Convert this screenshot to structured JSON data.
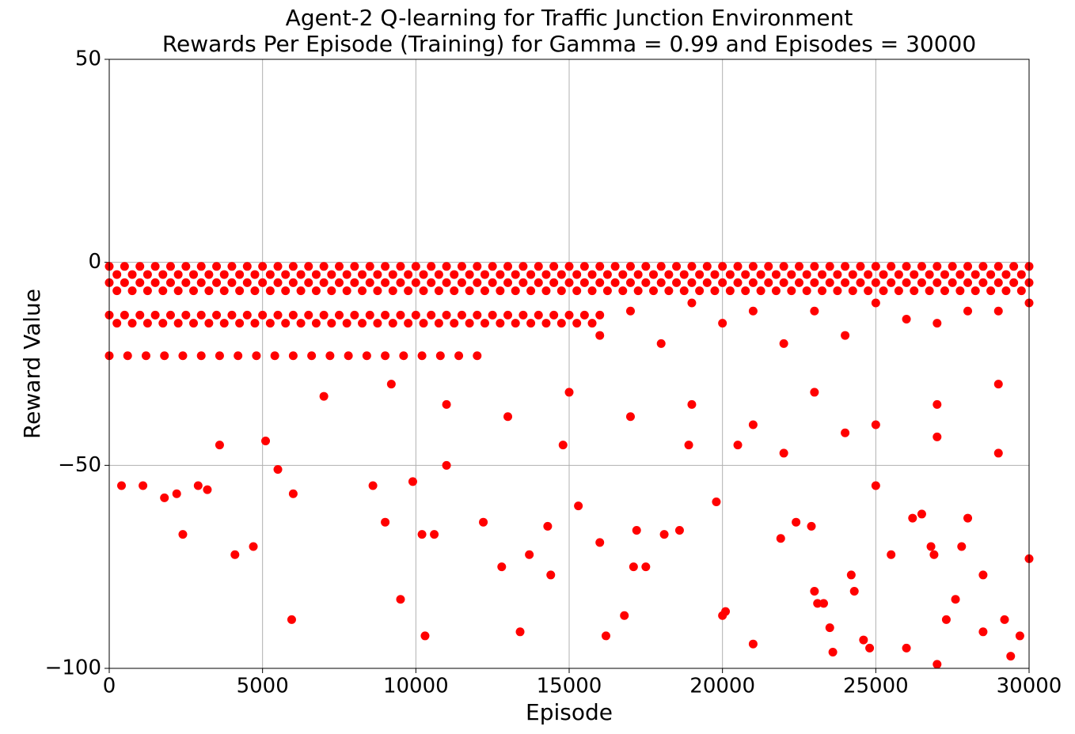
{
  "chart_data": {
    "type": "scatter",
    "title": "Agent-2 Q-learning for Traffic Junction Environment",
    "subtitle": "Rewards Per Episode (Training) for Gamma = 0.99 and Episodes = 30000",
    "x_label": "Episode",
    "y_label": "Reward Value",
    "color": "#ff0000",
    "grid": true,
    "xlim": [
      0,
      30000
    ],
    "xticks": [
      0,
      5000,
      10000,
      15000,
      20000,
      25000,
      30000
    ],
    "ylim": [
      -100,
      50
    ],
    "yticks": [
      {
        "value": -100,
        "label": "−100"
      },
      {
        "value": -50,
        "label": "−50"
      },
      0,
      50
    ],
    "x": [
      0,
      500,
      1000,
      1500,
      2000,
      2500,
      3000,
      3500,
      4000,
      4500,
      5000,
      5500,
      6000,
      6500,
      7000,
      7500,
      8000,
      8500,
      9000,
      9500,
      10000,
      10500,
      11000,
      11500,
      12000,
      12500,
      13000,
      13500,
      14000,
      14500,
      15000,
      15500,
      16000,
      16500,
      17000,
      17500,
      18000,
      18500,
      19000,
      19500,
      20000,
      20500,
      21000,
      21500,
      22000,
      22500,
      23000,
      23500,
      24000,
      24500,
      25000,
      25500,
      26000,
      26500,
      27000,
      27500,
      28000,
      28500,
      29000,
      29500,
      30000,
      250,
      750,
      1250,
      1750,
      2250,
      2750,
      3250,
      3750,
      4250,
      4750,
      5250,
      5750,
      6250,
      6750,
      7250,
      7750,
      8250,
      8750,
      9250,
      9750,
      10250,
      10750,
      11250,
      11750,
      12250,
      12750,
      13250,
      13750,
      14250,
      14750,
      15250,
      15750,
      16250,
      16750,
      17250,
      17750,
      18250,
      18750,
      19250,
      19750,
      20250,
      20750,
      21250,
      21750,
      22250,
      22750,
      23250,
      23750,
      24250,
      24750,
      25250,
      25750,
      26250,
      26750,
      27250,
      27750,
      28250,
      28750,
      29250,
      29750,
      0,
      500,
      1000,
      1500,
      2000,
      2500,
      3000,
      3500,
      4000,
      4500,
      5000,
      5500,
      6000,
      6500,
      7000,
      7500,
      8000,
      8500,
      9000,
      9500,
      10000,
      10500,
      11000,
      11500,
      12000,
      12500,
      13000,
      13500,
      14000,
      14500,
      15000,
      15500,
      16000,
      16500,
      17000,
      17500,
      18000,
      18500,
      19000,
      19500,
      20000,
      20500,
      21000,
      21500,
      22000,
      22500,
      23000,
      23500,
      24000,
      24500,
      25000,
      25500,
      26000,
      26500,
      27000,
      27500,
      28000,
      28500,
      29000,
      29500,
      30000,
      250,
      750,
      1250,
      1750,
      2250,
      2750,
      3250,
      3750,
      4250,
      4750,
      5250,
      5750,
      6250,
      6750,
      7250,
      7750,
      8250,
      8750,
      9250,
      9750,
      10250,
      10750,
      11250,
      11750,
      12250,
      12750,
      13250,
      13750,
      14250,
      14750,
      15250,
      15750,
      16250,
      16750,
      17250,
      17750,
      18250,
      18750,
      19250,
      19750,
      20250,
      20750,
      21250,
      21750,
      22250,
      22750,
      23250,
      23750,
      24250,
      24750,
      25250,
      25750,
      26250,
      26750,
      27250,
      27750,
      28250,
      28750,
      29250,
      29750,
      0,
      500,
      1000,
      1500,
      2000,
      2500,
      3000,
      3500,
      4000,
      4500,
      5000,
      5500,
      6000,
      6500,
      7000,
      7500,
      8000,
      8500,
      9000,
      9500,
      10000,
      10500,
      11000,
      11500,
      12000,
      12500,
      13000,
      13500,
      14000,
      14500,
      15000,
      15500,
      16000,
      250,
      750,
      1250,
      1750,
      2250,
      2750,
      3250,
      3750,
      4250,
      4750,
      5250,
      5750,
      6250,
      6750,
      7250,
      7750,
      8250,
      8750,
      9250,
      9750,
      10250,
      10750,
      11250,
      11750,
      12250,
      12750,
      13250,
      13750,
      14250,
      14750,
      15250,
      15750,
      0,
      600,
      1200,
      1800,
      2400,
      3000,
      3600,
      4200,
      4800,
      5400,
      6000,
      6600,
      7200,
      7800,
      8400,
      9000,
      9600,
      10200,
      10800,
      11400,
      12000,
      400,
      1100,
      1800,
      2200,
      2400,
      2900,
      3200,
      3600,
      4100,
      4700,
      5100,
      5500,
      6000,
      5950,
      8600,
      9000,
      9500,
      9900,
      10300,
      10200,
      10600,
      11000,
      12200,
      12800,
      13400,
      13700,
      14300,
      14400,
      15300,
      16000,
      16200,
      16800,
      17100,
      17500,
      17200,
      18100,
      18600,
      19800,
      20000,
      20100,
      21000,
      21900,
      22400,
      22900,
      23000,
      23100,
      23300,
      23600,
      23500,
      24200,
      24300,
      24600,
      24800,
      25000,
      26000,
      26200,
      26500,
      26900,
      27000,
      27300,
      27600,
      27800,
      28500,
      28500,
      29200,
      29400,
      29700,
      30000,
      28000,
      25500,
      26800,
      14800,
      18900,
      20500,
      22000,
      24000,
      27000,
      29000,
      7000,
      9200,
      11000,
      13000,
      15000,
      17000,
      19000,
      21000,
      23000,
      25000,
      27000,
      29000,
      16000,
      18000,
      20000,
      22000,
      24000,
      26000,
      28000,
      30000,
      17000,
      19000,
      21000,
      23000,
      25000,
      27000,
      29000
    ],
    "values": [
      -1,
      -1,
      -1,
      -1,
      -1,
      -1,
      -1,
      -1,
      -1,
      -1,
      -1,
      -1,
      -1,
      -1,
      -1,
      -1,
      -1,
      -1,
      -1,
      -1,
      -1,
      -1,
      -1,
      -1,
      -1,
      -1,
      -1,
      -1,
      -1,
      -1,
      -1,
      -1,
      -1,
      -1,
      -1,
      -1,
      -1,
      -1,
      -1,
      -1,
      -1,
      -1,
      -1,
      -1,
      -1,
      -1,
      -1,
      -1,
      -1,
      -1,
      -1,
      -1,
      -1,
      -1,
      -1,
      -1,
      -1,
      -1,
      -1,
      -1,
      -1,
      -3,
      -3,
      -3,
      -3,
      -3,
      -3,
      -3,
      -3,
      -3,
      -3,
      -3,
      -3,
      -3,
      -3,
      -3,
      -3,
      -3,
      -3,
      -3,
      -3,
      -3,
      -3,
      -3,
      -3,
      -3,
      -3,
      -3,
      -3,
      -3,
      -3,
      -3,
      -3,
      -3,
      -3,
      -3,
      -3,
      -3,
      -3,
      -3,
      -3,
      -3,
      -3,
      -3,
      -3,
      -3,
      -3,
      -3,
      -3,
      -3,
      -3,
      -3,
      -3,
      -3,
      -3,
      -3,
      -3,
      -3,
      -3,
      -3,
      -3,
      -5,
      -5,
      -5,
      -5,
      -5,
      -5,
      -5,
      -5,
      -5,
      -5,
      -5,
      -5,
      -5,
      -5,
      -5,
      -5,
      -5,
      -5,
      -5,
      -5,
      -5,
      -5,
      -5,
      -5,
      -5,
      -5,
      -5,
      -5,
      -5,
      -5,
      -5,
      -5,
      -5,
      -5,
      -5,
      -5,
      -5,
      -5,
      -5,
      -5,
      -5,
      -5,
      -5,
      -5,
      -5,
      -5,
      -5,
      -5,
      -5,
      -5,
      -5,
      -5,
      -5,
      -5,
      -5,
      -5,
      -5,
      -5,
      -5,
      -5,
      -5,
      -7,
      -7,
      -7,
      -7,
      -7,
      -7,
      -7,
      -7,
      -7,
      -7,
      -7,
      -7,
      -7,
      -7,
      -7,
      -7,
      -7,
      -7,
      -7,
      -7,
      -7,
      -7,
      -7,
      -7,
      -7,
      -7,
      -7,
      -7,
      -7,
      -7,
      -7,
      -7,
      -7,
      -7,
      -7,
      -7,
      -7,
      -7,
      -7,
      -7,
      -7,
      -7,
      -7,
      -7,
      -7,
      -7,
      -7,
      -7,
      -7,
      -7,
      -7,
      -7,
      -7,
      -7,
      -7,
      -7,
      -7,
      -7,
      -7,
      -7,
      -13,
      -13,
      -13,
      -13,
      -13,
      -13,
      -13,
      -13,
      -13,
      -13,
      -13,
      -13,
      -13,
      -13,
      -13,
      -13,
      -13,
      -13,
      -13,
      -13,
      -13,
      -13,
      -13,
      -13,
      -13,
      -13,
      -13,
      -13,
      -13,
      -13,
      -13,
      -13,
      -13,
      -15,
      -15,
      -15,
      -15,
      -15,
      -15,
      -15,
      -15,
      -15,
      -15,
      -15,
      -15,
      -15,
      -15,
      -15,
      -15,
      -15,
      -15,
      -15,
      -15,
      -15,
      -15,
      -15,
      -15,
      -15,
      -15,
      -15,
      -15,
      -15,
      -15,
      -15,
      -15,
      -23,
      -23,
      -23,
      -23,
      -23,
      -23,
      -23,
      -23,
      -23,
      -23,
      -23,
      -23,
      -23,
      -23,
      -23,
      -23,
      -23,
      -23,
      -23,
      -23,
      -23,
      -55,
      -55,
      -58,
      -57,
      -67,
      -55,
      -56,
      -45,
      -72,
      -70,
      -44,
      -51,
      -57,
      -88,
      -55,
      -64,
      -83,
      -54,
      -92,
      -67,
      -67,
      -50,
      -64,
      -75,
      -91,
      -72,
      -65,
      -77,
      -60,
      -69,
      -92,
      -87,
      -75,
      -75,
      -66,
      -67,
      -66,
      -59,
      -87,
      -86,
      -94,
      -68,
      -64,
      -65,
      -81,
      -84,
      -84,
      -96,
      -90,
      -77,
      -81,
      -93,
      -95,
      -55,
      -95,
      -63,
      -62,
      -72,
      -99,
      -88,
      -83,
      -70,
      -91,
      -77,
      -88,
      -97,
      -92,
      -73,
      -63,
      -72,
      -70,
      -45,
      -45,
      -45,
      -47,
      -42,
      -43,
      -47,
      -33,
      -30,
      -35,
      -38,
      -32,
      -38,
      -35,
      -40,
      -32,
      -40,
      -35,
      -30,
      -18,
      -20,
      -15,
      -20,
      -18,
      -14,
      -12,
      -10,
      -12,
      -10,
      -12,
      -12,
      -10,
      -15,
      -12
    ]
  }
}
